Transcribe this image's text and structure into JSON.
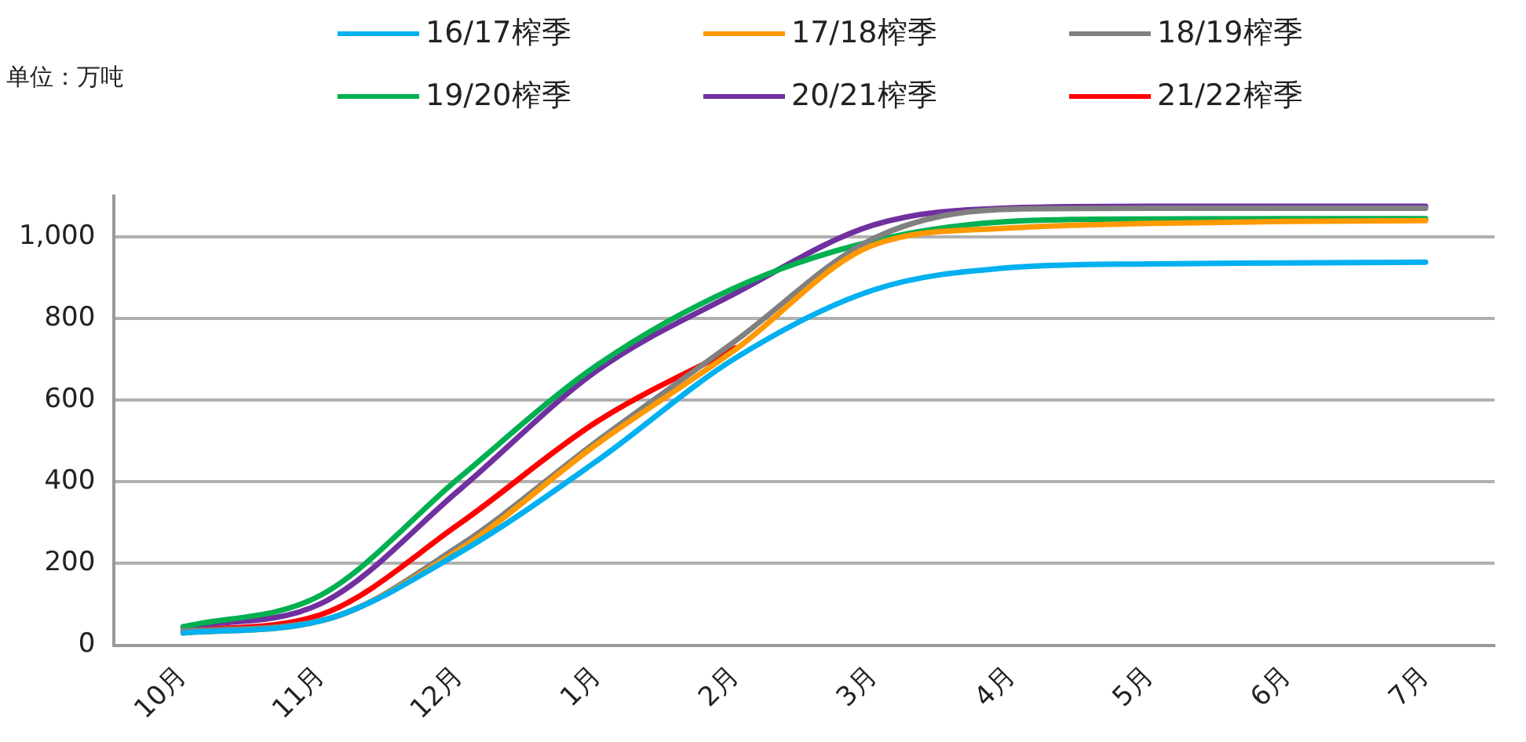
{
  "chart_data": {
    "type": "line",
    "ylabel": "单位：万吨",
    "categories": [
      "10月",
      "11月",
      "12月",
      "1月",
      "2月",
      "3月",
      "4月",
      "5月",
      "6月",
      "7月"
    ],
    "ylim": [
      0,
      1100
    ],
    "yticks": [
      0,
      200,
      400,
      600,
      800,
      {
        "value": 1000,
        "label": "1,000"
      }
    ],
    "grid": "y",
    "legend": "top",
    "marker": "none",
    "line_style": "solid",
    "series": [
      {
        "name": "16/17榨季",
        "color": "#00b0f0",
        "values": [
          30,
          60,
          226,
          452,
          703,
          870,
          925,
          934,
          936,
          938
        ]
      },
      {
        "name": "17/18榨季",
        "color": "#ff9900",
        "values": [
          30,
          60,
          234,
          493,
          724,
          980,
          1022,
          1033,
          1038,
          1040
        ]
      },
      {
        "name": "18/19榨季",
        "color": "#808080",
        "values": [
          35,
          60,
          243,
          500,
          745,
          996,
          1068,
          1070,
          1070,
          1070
        ]
      },
      {
        "name": "19/20榨季",
        "color": "#00b050",
        "values": [
          45,
          123,
          410,
          686,
          876,
          990,
          1038,
          1044,
          1045,
          1045
        ]
      },
      {
        "name": "20/21榨季",
        "color": "#7030a0",
        "values": [
          45,
          102,
          380,
          673,
          862,
          1029,
          1071,
          1075,
          1075,
          1075
        ]
      },
      {
        "name": "21/22榨季",
        "color": "#ff0000",
        "values": [
          35,
          75,
          297,
          548,
          728,
          null,
          null,
          null,
          null,
          null
        ]
      }
    ]
  }
}
